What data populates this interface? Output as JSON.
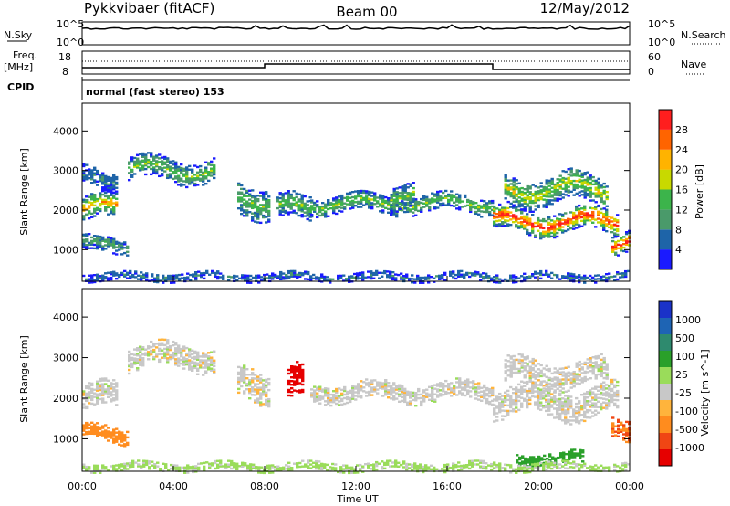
{
  "header": {
    "station": "Pykkvibaer (fitACF)",
    "beam": "Beam 00",
    "date": "12/May/2012"
  },
  "sky_panel": {
    "left_label": "N.Sky",
    "right_label": "N.Search",
    "ticks": [
      "10^5",
      "10^0"
    ]
  },
  "freq_panel": {
    "left_label_1": "Freq.",
    "left_label_2": "[MHz]",
    "right_label": "Nave",
    "left_ticks": [
      "18",
      "8"
    ],
    "right_ticks": [
      "60",
      "0"
    ]
  },
  "cpid": {
    "label": "CPID",
    "text": "normal (fast stereo) 153"
  },
  "x_axis": {
    "title": "Time UT",
    "ticks": [
      "00:00",
      "04:00",
      "08:00",
      "12:00",
      "16:00",
      "20:00",
      "00:00"
    ]
  },
  "colors": {
    "power": [
      "#1a1aff",
      "#1e64a8",
      "#4a9a6a",
      "#3cb44b",
      "#c8d900",
      "#ffb300",
      "#ff6400",
      "#ff1e1e"
    ],
    "velocity": [
      "#e60000",
      "#f04614",
      "#ff8c1e",
      "#ffb43c",
      "#c8c8c8",
      "#9adc5a",
      "#2aa02a",
      "#2e8a6e",
      "#1e64b4",
      "#1a32c8"
    ]
  },
  "chart_data": [
    {
      "type": "heatmap",
      "name": "power",
      "xlabel": "Time UT",
      "ylabel": "Slant Range [km]",
      "xlim_hours": [
        0,
        24
      ],
      "ylim": [
        200,
        4700
      ],
      "yticks": [
        "4000",
        "3000",
        "2000",
        "1000"
      ],
      "colorbar_label": "Power [dB]",
      "colorbar_ticks": [
        "28",
        "24",
        "20",
        "16",
        "12",
        "8",
        "4"
      ],
      "colorbar_range": [
        0,
        32
      ],
      "bands": [
        {
          "t": [
            0.0,
            1.5
          ],
          "r_center": 2000,
          "r_width": 300,
          "peak_level": 5
        },
        {
          "t": [
            0.0,
            2.0
          ],
          "r_center": 1100,
          "r_width": 200,
          "peak_level": 2
        },
        {
          "t": [
            0.0,
            1.5
          ],
          "r_center": 2800,
          "r_width": 250,
          "peak_level": 1
        },
        {
          "t": [
            2.0,
            5.8
          ],
          "r_center": 3000,
          "r_width": 280,
          "peak_level": 3
        },
        {
          "t": [
            6.8,
            8.2
          ],
          "r_center": 2300,
          "r_width": 400,
          "peak_level": 3
        },
        {
          "t": [
            8.5,
            10.0
          ],
          "r_center": 2000,
          "r_width": 300,
          "peak_level": 3
        },
        {
          "t": [
            10.0,
            18.0
          ],
          "r_center": 2150,
          "r_width": 220,
          "peak_level": 3
        },
        {
          "t": [
            13.5,
            14.5
          ],
          "r_center": 2400,
          "r_width": 300,
          "peak_level": 3
        },
        {
          "t": [
            18.0,
            23.5
          ],
          "r_center": 1700,
          "r_width": 280,
          "peak_level": 7
        },
        {
          "t": [
            18.5,
            23.0
          ],
          "r_center": 2500,
          "r_width": 350,
          "peak_level": 4
        },
        {
          "t": [
            23.2,
            24.0
          ],
          "r_center": 1150,
          "r_width": 250,
          "peak_level": 7
        },
        {
          "t": [
            0.0,
            24.0
          ],
          "r_center": 300,
          "r_width": 100,
          "peak_level": 1
        }
      ]
    },
    {
      "type": "heatmap",
      "name": "velocity",
      "xlabel": "Time UT",
      "ylabel": "Slant Range [km]",
      "xlim_hours": [
        0,
        24
      ],
      "ylim": [
        200,
        4700
      ],
      "yticks": [
        "4000",
        "3000",
        "2000",
        "1000"
      ],
      "colorbar_label": "Velocity [m s^-1]",
      "colorbar_ticks": [
        "1000",
        "500",
        "100",
        "25",
        "-25",
        "-100",
        "-500",
        "-1000"
      ],
      "colorbar_range": [
        -1200,
        1200
      ],
      "bands": [
        {
          "t": [
            0.0,
            1.5
          ],
          "r_center": 2000,
          "r_width": 300,
          "v": 0
        },
        {
          "t": [
            0.0,
            2.0
          ],
          "r_center": 1100,
          "r_width": 200,
          "v": -200
        },
        {
          "t": [
            2.0,
            5.8
          ],
          "r_center": 3000,
          "r_width": 280,
          "v": 0
        },
        {
          "t": [
            6.8,
            8.2
          ],
          "r_center": 2300,
          "r_width": 400,
          "v": 0
        },
        {
          "t": [
            9.0,
            9.6
          ],
          "r_center": 2300,
          "r_width": 400,
          "v": -800
        },
        {
          "t": [
            10.0,
            18.0
          ],
          "r_center": 2150,
          "r_width": 220,
          "v": 0
        },
        {
          "t": [
            18.0,
            23.5
          ],
          "r_center": 1900,
          "r_width": 350,
          "v": 0
        },
        {
          "t": [
            18.5,
            23.0
          ],
          "r_center": 2600,
          "r_width": 300,
          "v": 0
        },
        {
          "t": [
            23.2,
            24.0
          ],
          "r_center": 1300,
          "r_width": 250,
          "v": -300
        },
        {
          "t": [
            19.0,
            22.0
          ],
          "r_center": 500,
          "r_width": 150,
          "v": 150
        },
        {
          "t": [
            0.0,
            24.0
          ],
          "r_center": 300,
          "r_width": 100,
          "v": 40
        }
      ]
    }
  ]
}
